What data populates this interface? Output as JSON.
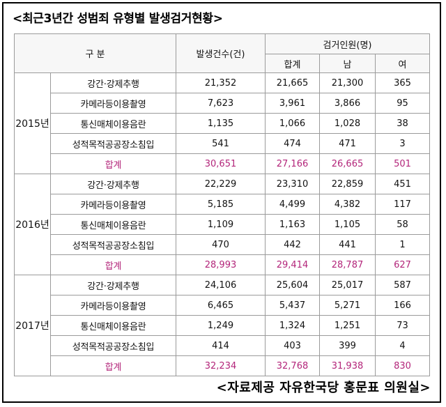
{
  "title": "<최근3년간 성범죄 유형별 발생검거현황>",
  "headers": {
    "category": "구 분",
    "incidents": "발생건수(건)",
    "arrests": "검거인원(명)",
    "total": "합계",
    "male": "남",
    "female": "여"
  },
  "years": [
    {
      "year": "2015년",
      "rows": [
        {
          "label": "강간·강제추행",
          "incidents": "21,352",
          "total": "21,665",
          "male": "21,300",
          "female": "365"
        },
        {
          "label": "카메라등이용촬영",
          "incidents": "7,623",
          "total": "3,961",
          "male": "3,866",
          "female": "95"
        },
        {
          "label": "통신매체이용음란",
          "incidents": "1,135",
          "total": "1,066",
          "male": "1,028",
          "female": "38"
        },
        {
          "label": "성적목적공공장소침입",
          "incidents": "541",
          "total": "474",
          "male": "471",
          "female": "3"
        },
        {
          "label": "합계",
          "incidents": "30,651",
          "total": "27,166",
          "male": "26,665",
          "female": "501"
        }
      ]
    },
    {
      "year": "2016년",
      "rows": [
        {
          "label": "강간·강제추행",
          "incidents": "22,229",
          "total": "23,310",
          "male": "22,859",
          "female": "451"
        },
        {
          "label": "카메라등이용촬영",
          "incidents": "5,185",
          "total": "4,499",
          "male": "4,382",
          "female": "117"
        },
        {
          "label": "통신매체이용음란",
          "incidents": "1,109",
          "total": "1,163",
          "male": "1,105",
          "female": "58"
        },
        {
          "label": "성적목적공공장소침입",
          "incidents": "470",
          "total": "442",
          "male": "441",
          "female": "1"
        },
        {
          "label": "합계",
          "incidents": "28,993",
          "total": "29,414",
          "male": "28,787",
          "female": "627"
        }
      ]
    },
    {
      "year": "2017년",
      "rows": [
        {
          "label": "강간·강제추행",
          "incidents": "24,106",
          "total": "25,604",
          "male": "25,017",
          "female": "587"
        },
        {
          "label": "카메라등이용촬영",
          "incidents": "6,465",
          "total": "5,437",
          "male": "5,271",
          "female": "166"
        },
        {
          "label": "통신매체이용음란",
          "incidents": "1,249",
          "total": "1,324",
          "male": "1,251",
          "female": "73"
        },
        {
          "label": "성적목적공공장소침입",
          "incidents": "414",
          "total": "403",
          "male": "399",
          "female": "4"
        },
        {
          "label": "합계",
          "incidents": "32,234",
          "total": "32,768",
          "male": "31,938",
          "female": "830"
        }
      ]
    }
  ],
  "source": "<자료제공 자유한국당 홍문표 의원실>",
  "colors": {
    "total_text": "#b3257a",
    "border": "#9a9a9a"
  }
}
